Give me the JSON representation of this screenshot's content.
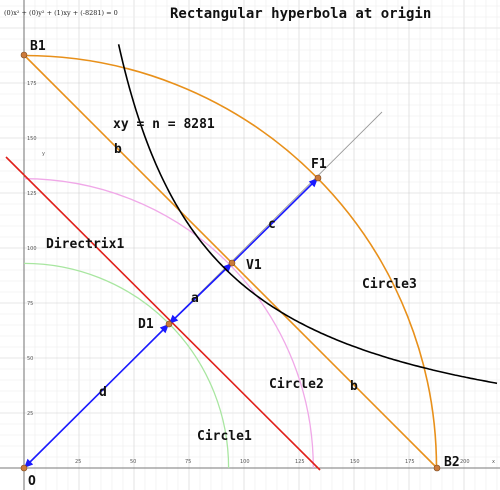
{
  "title": "Rectangular hyperbola at origin",
  "equation": "(0)x² + (0)y² + (1)xy + (-8281) = 0",
  "hyperbola_label": "xy = n = 8281",
  "axis": {
    "x_label": "x",
    "y_label": "y",
    "x_ticks": [
      "25",
      "50",
      "75",
      "100",
      "125",
      "150",
      "175",
      "200"
    ],
    "y_ticks": [
      "25",
      "50",
      "75",
      "100",
      "125",
      "150",
      "175"
    ]
  },
  "points": {
    "B1": "B1",
    "F1": "F1",
    "V1": "V1",
    "D1": "D1",
    "O": "O",
    "B2": "B2"
  },
  "segments": {
    "a": "a",
    "b_upper": "b",
    "b_lower": "b",
    "c": "c",
    "d": "d"
  },
  "curves": {
    "directrix": "Directrix1",
    "circle1": "Circle1",
    "circle2": "Circle2",
    "circle3": "Circle3"
  },
  "colors": {
    "hyperbola": "#000000",
    "axis_arrow": "#1a1aff",
    "directrix": "#e0201a",
    "orange": "#e8901a",
    "circle1": "#a8e6a0",
    "circle2": "#f0a8e8",
    "asymptote": "#999999"
  }
}
